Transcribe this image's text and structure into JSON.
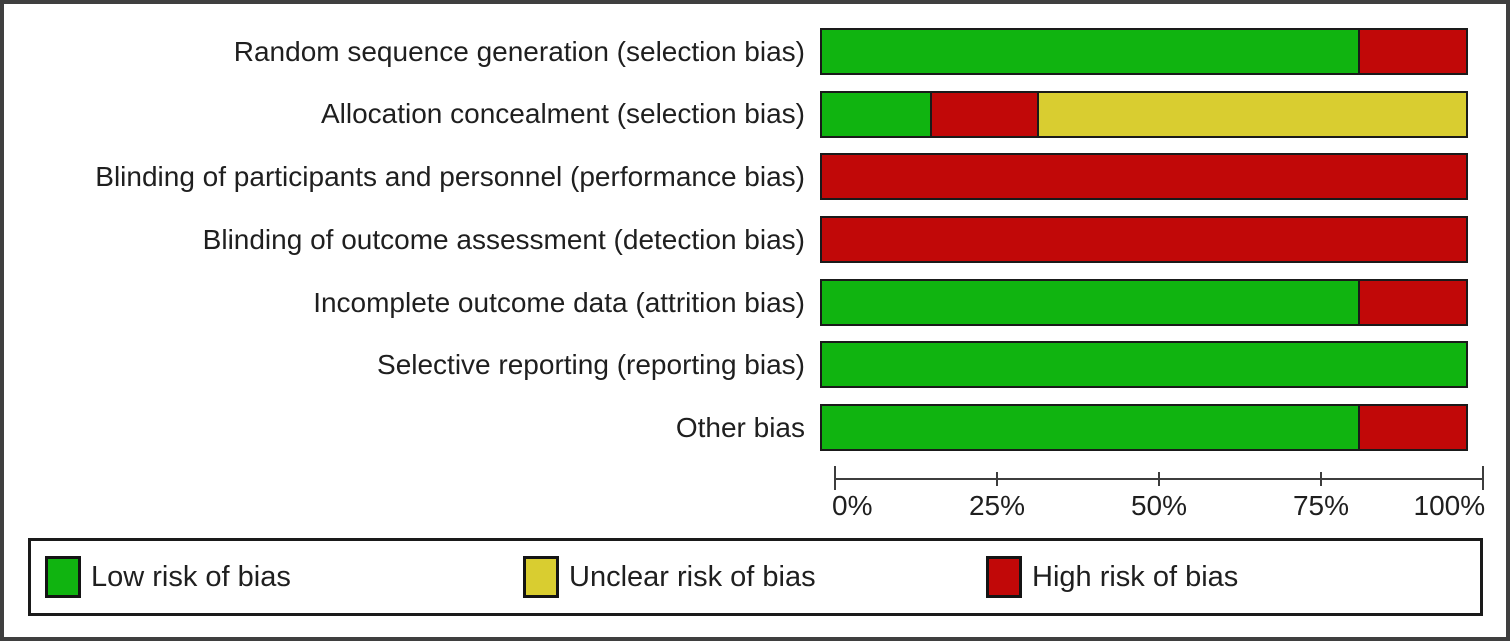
{
  "chart_data": {
    "type": "bar",
    "orientation": "horizontal-stacked",
    "title": "",
    "xlabel": "",
    "ylabel": "",
    "xlim": [
      0,
      100
    ],
    "x_ticks": [
      "0%",
      "25%",
      "50%",
      "75%",
      "100%"
    ],
    "grid": false,
    "legend_position": "bottom",
    "categories": [
      "Random sequence generation (selection bias)",
      "Allocation concealment (selection bias)",
      "Blinding of participants and personnel (performance bias)",
      "Blinding of outcome assessment (detection bias)",
      "Incomplete outcome data (attrition bias)",
      "Selective reporting (reporting bias)",
      "Other bias"
    ],
    "series": [
      {
        "name": "Low risk of bias",
        "color": "#10B410",
        "values": [
          83.3,
          16.7,
          0,
          0,
          83.3,
          100,
          83.3
        ]
      },
      {
        "name": "Unclear risk of bias",
        "color": "#D9CD30",
        "values": [
          0,
          66.7,
          0,
          0,
          0,
          0,
          0
        ]
      },
      {
        "name": "High risk of bias",
        "color": "#C10808",
        "values": [
          16.7,
          16.7,
          100,
          100,
          16.7,
          0,
          16.7
        ]
      }
    ],
    "segment_draw_order": [
      "low",
      "high",
      "unclear"
    ]
  },
  "rows": [
    {
      "label": "Random sequence generation (selection bias)",
      "segments": [
        {
          "risk": "low",
          "pct": 83.3
        },
        {
          "risk": "high",
          "pct": 16.7
        }
      ]
    },
    {
      "label": "Allocation concealment (selection bias)",
      "segments": [
        {
          "risk": "low",
          "pct": 16.7
        },
        {
          "risk": "high",
          "pct": 16.7
        },
        {
          "risk": "unclear",
          "pct": 66.6
        }
      ]
    },
    {
      "label": "Blinding of participants and personnel (performance bias)",
      "segments": [
        {
          "risk": "high",
          "pct": 100
        }
      ]
    },
    {
      "label": "Blinding of outcome assessment (detection bias)",
      "segments": [
        {
          "risk": "high",
          "pct": 100
        }
      ]
    },
    {
      "label": "Incomplete outcome data (attrition bias)",
      "segments": [
        {
          "risk": "low",
          "pct": 83.3
        },
        {
          "risk": "high",
          "pct": 16.7
        }
      ]
    },
    {
      "label": "Selective reporting (reporting bias)",
      "segments": [
        {
          "risk": "low",
          "pct": 100
        }
      ]
    },
    {
      "label": "Other bias",
      "segments": [
        {
          "risk": "low",
          "pct": 83.3
        },
        {
          "risk": "high",
          "pct": 16.7
        }
      ]
    }
  ],
  "legend": {
    "items": [
      {
        "label": "Low risk of bias",
        "risk": "low"
      },
      {
        "label": "Unclear risk of bias",
        "risk": "unclear"
      },
      {
        "label": "High risk of bias",
        "risk": "high"
      }
    ]
  },
  "colors": {
    "low": "#10B410",
    "unclear": "#D9CD30",
    "high": "#C10808",
    "bar_border": "#1a1a1a",
    "axis": "#3d3d3d",
    "text": "#1f1f1f",
    "frame_border": "#3f3f3f"
  }
}
